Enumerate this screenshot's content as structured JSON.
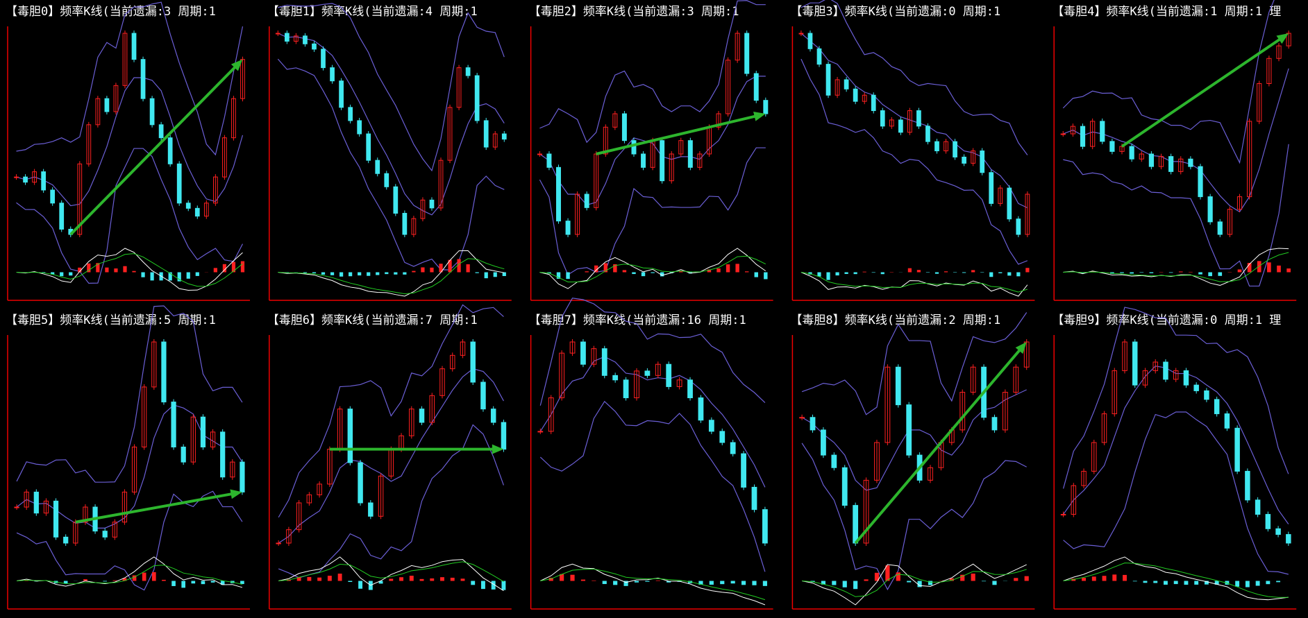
{
  "panels": [
    {
      "title": "【毒胆0】频率K线(当前遗漏:3 周期:1",
      "trend_arrow": true,
      "close": [
        40,
        38,
        42,
        35,
        30,
        20,
        18,
        45,
        60,
        70,
        65,
        75,
        95,
        85,
        70,
        60,
        55,
        45,
        30,
        28,
        25,
        30,
        40,
        55,
        70,
        85
      ]
    },
    {
      "title": "【毒胆1】频率K线(当前遗漏:4 周期:1",
      "trend_arrow": false,
      "close": [
        88,
        85,
        87,
        84,
        82,
        75,
        70,
        60,
        55,
        50,
        40,
        35,
        30,
        20,
        12,
        18,
        25,
        22,
        40,
        60,
        75,
        72,
        55,
        45,
        50,
        48
      ]
    },
    {
      "title": "【毒胆2】频率K线(当前遗漏:3 周期:1",
      "trend_arrow": true,
      "close": [
        45,
        40,
        20,
        15,
        30,
        25,
        45,
        55,
        60,
        50,
        45,
        40,
        50,
        35,
        45,
        50,
        40,
        45,
        55,
        60,
        80,
        90,
        75,
        65,
        60
      ]
    },
    {
      "title": "【毒胆3】频率K线(当前遗漏:0 周期:1",
      "trend_arrow": false,
      "close": [
        80,
        75,
        70,
        60,
        65,
        62,
        58,
        60,
        55,
        50,
        52,
        48,
        55,
        50,
        45,
        42,
        45,
        40,
        38,
        42,
        35,
        25,
        30,
        20,
        15,
        28
      ]
    },
    {
      "title": "【毒胆4】频率K线(当前遗漏:1 周期:1 理",
      "trend_arrow": true,
      "close": [
        55,
        58,
        50,
        60,
        52,
        48,
        50,
        45,
        47,
        42,
        46,
        40,
        45,
        42,
        30,
        20,
        15,
        25,
        30,
        60,
        75,
        85,
        90,
        95
      ]
    },
    {
      "title": "【毒胆5】频率K线(当前遗漏:5 周期:1",
      "trend_arrow": true,
      "close": [
        40,
        45,
        38,
        42,
        30,
        28,
        35,
        40,
        32,
        30,
        35,
        45,
        60,
        80,
        95,
        75,
        60,
        55,
        70,
        60,
        65,
        50,
        55,
        45
      ]
    },
    {
      "title": "【毒胆6】频率K线(当前遗漏:7 周期:1",
      "trend_arrow": true,
      "close": [
        20,
        25,
        35,
        38,
        42,
        55,
        70,
        50,
        35,
        30,
        45,
        55,
        60,
        70,
        65,
        75,
        85,
        90,
        95,
        80,
        70,
        65,
        55
      ]
    },
    {
      "title": "【毒胆7】频率K线(当前遗漏:16 周期:1",
      "trend_arrow": false,
      "close": [
        55,
        70,
        90,
        95,
        85,
        92,
        80,
        78,
        70,
        82,
        80,
        85,
        75,
        78,
        70,
        60,
        55,
        50,
        45,
        30,
        20,
        5
      ]
    },
    {
      "title": "【毒胆8】频率K线(当前遗漏:2 周期:1",
      "trend_arrow": true,
      "close": [
        65,
        60,
        50,
        45,
        30,
        15,
        40,
        55,
        85,
        70,
        50,
        40,
        45,
        55,
        60,
        75,
        85,
        65,
        60,
        75,
        85,
        95
      ]
    },
    {
      "title": "【毒胆9】频率K线(当前遗漏:0 周期:1 理",
      "trend_arrow": false,
      "close": [
        35,
        45,
        50,
        60,
        70,
        85,
        95,
        80,
        85,
        88,
        82,
        85,
        80,
        78,
        75,
        70,
        65,
        50,
        40,
        35,
        30,
        28,
        25
      ]
    }
  ]
}
